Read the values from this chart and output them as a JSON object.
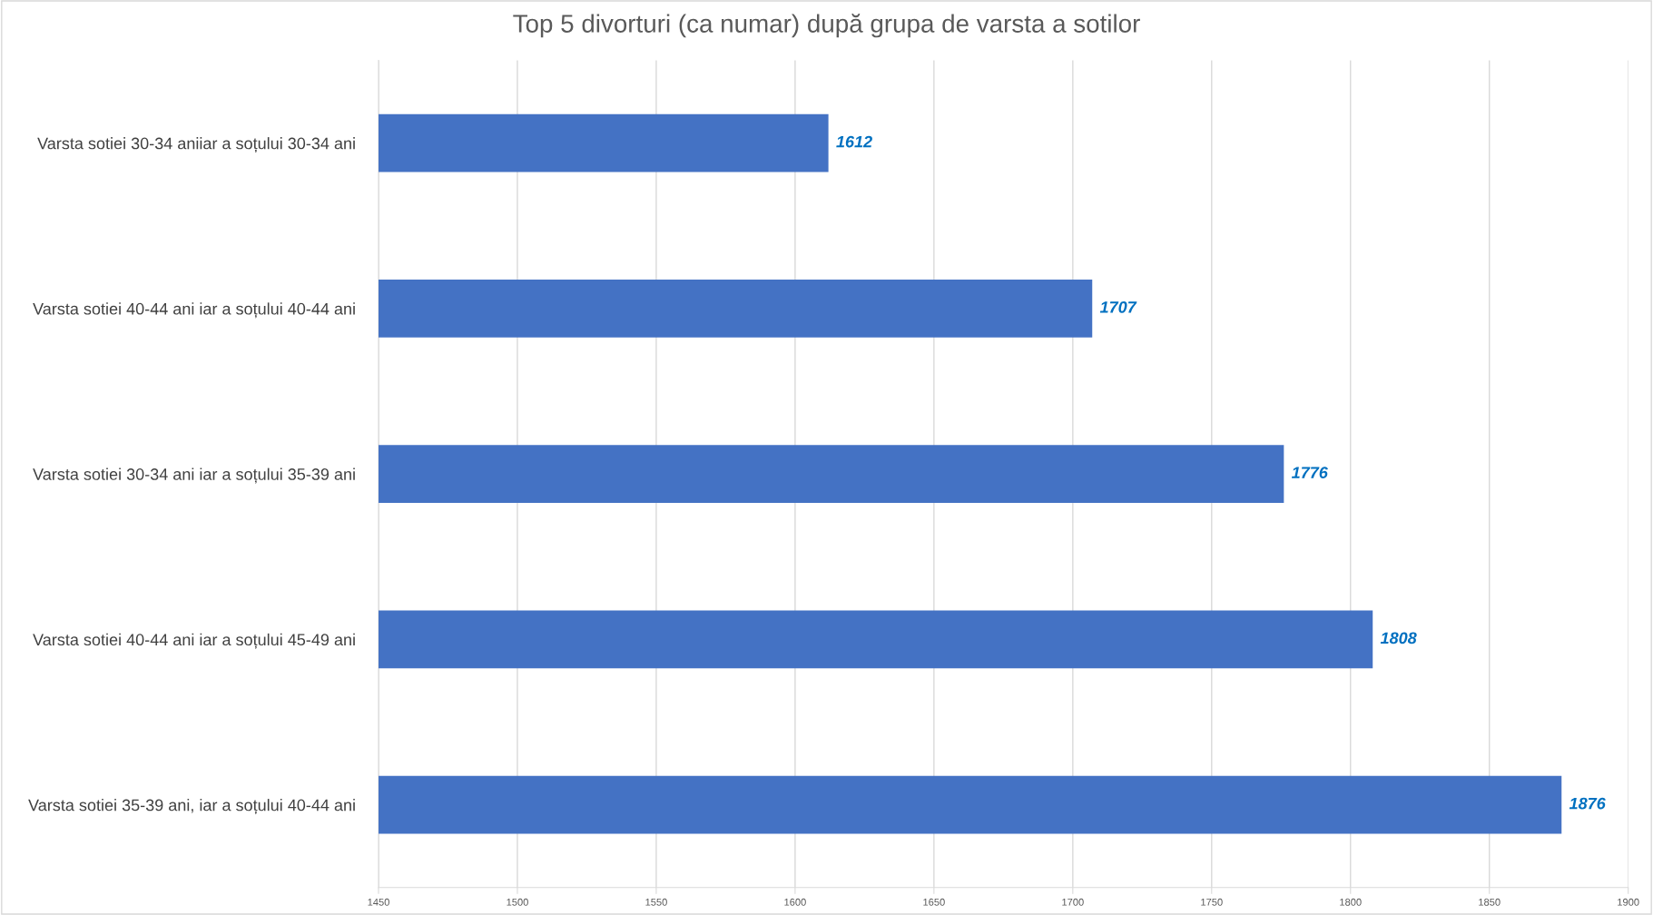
{
  "chart_data": {
    "type": "bar",
    "orientation": "horizontal",
    "title": "Top 5 divorturi (ca numar) după grupa de varsta a sotilor",
    "categories": [
      "Varsta sotiei 30-34 aniiar a soțului 30-34 ani",
      "Varsta sotiei 40-44 ani iar a soțului 40-44 ani",
      "Varsta sotiei 30-34 ani iar a soțului 35-39 ani",
      "Varsta sotiei 40-44 ani iar a soțului 45-49 ani",
      "Varsta sotiei 35-39 ani, iar a soțului 40-44 ani"
    ],
    "values": [
      1612,
      1707,
      1776,
      1808,
      1876
    ],
    "color": "#4472c4",
    "xlim": [
      1450,
      1900
    ],
    "xticks": [
      1450,
      1500,
      1550,
      1600,
      1650,
      1700,
      1750,
      1800,
      1850,
      1900
    ],
    "grid": "x",
    "data_labels": true
  }
}
